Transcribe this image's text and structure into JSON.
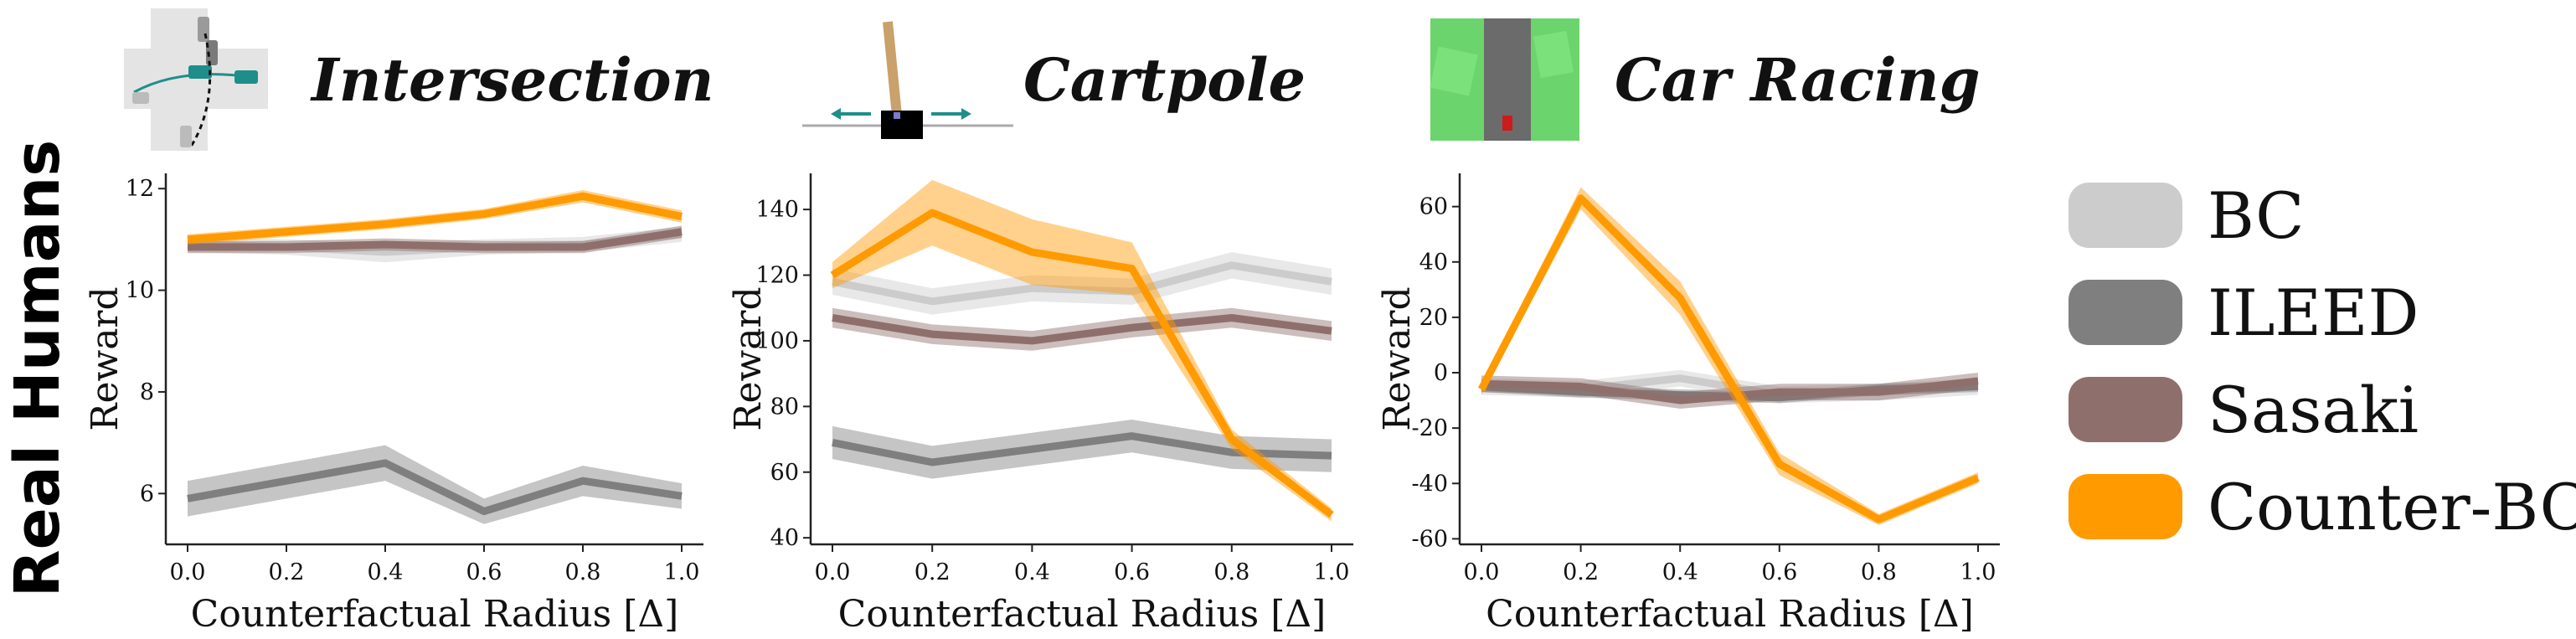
{
  "row_label": "Real Humans",
  "legend": [
    {
      "name": "BC",
      "color": "#cccccc"
    },
    {
      "name": "ILEED",
      "color": "#7f7f7f"
    },
    {
      "name": "Sasaki",
      "color": "#8f6f6c"
    },
    {
      "name": "Counter-BC",
      "color": "#ff9a00"
    }
  ],
  "chart_data": [
    {
      "type": "line",
      "title": "Intersection",
      "xlabel": "Counterfactual Radius [Δ]",
      "ylabel": "Reward",
      "x": [
        0.0,
        0.2,
        0.4,
        0.6,
        0.8,
        1.0
      ],
      "xticks": [
        "0.0",
        "0.2",
        "0.4",
        "0.6",
        "0.8",
        "1.0"
      ],
      "ylim": [
        5.0,
        12.3
      ],
      "yticks": [
        6,
        8,
        10,
        12
      ],
      "ytick_labels": [
        "6",
        "8",
        "10",
        "12"
      ],
      "series": [
        {
          "name": "BC",
          "values": [
            10.9,
            10.85,
            10.75,
            10.85,
            10.9,
            11.1
          ],
          "band": [
            0.15,
            0.15,
            0.2,
            0.15,
            0.15,
            0.15
          ]
        },
        {
          "name": "ILEED",
          "values": [
            5.9,
            6.25,
            6.6,
            5.65,
            6.25,
            5.95
          ],
          "band": [
            0.35,
            0.35,
            0.35,
            0.25,
            0.3,
            0.25
          ]
        },
        {
          "name": "Sasaki",
          "values": [
            10.85,
            10.85,
            10.9,
            10.85,
            10.85,
            11.15
          ],
          "band": [
            0.12,
            0.12,
            0.12,
            0.12,
            0.12,
            0.12
          ]
        },
        {
          "name": "Counter-BC",
          "values": [
            11.0,
            11.15,
            11.3,
            11.5,
            11.85,
            11.45
          ],
          "band": [
            0.1,
            0.1,
            0.1,
            0.1,
            0.12,
            0.12
          ]
        }
      ]
    },
    {
      "type": "line",
      "title": "Cartpole",
      "xlabel": "Counterfactual Radius [Δ]",
      "ylabel": "Reward",
      "x": [
        0.0,
        0.2,
        0.4,
        0.6,
        0.8,
        1.0
      ],
      "xticks": [
        "0.0",
        "0.2",
        "0.4",
        "0.6",
        "0.8",
        "1.0"
      ],
      "ylim": [
        38,
        151
      ],
      "yticks": [
        40,
        60,
        80,
        100,
        120,
        140
      ],
      "ytick_labels": [
        "40",
        "60",
        "80",
        "100",
        "120",
        "140"
      ],
      "series": [
        {
          "name": "BC",
          "values": [
            118,
            112,
            116,
            115,
            123,
            118
          ],
          "band": [
            4,
            4,
            4,
            4,
            4,
            4
          ]
        },
        {
          "name": "ILEED",
          "values": [
            69,
            63,
            67,
            71,
            66,
            65
          ],
          "band": [
            5,
            5,
            5,
            5,
            5,
            5
          ]
        },
        {
          "name": "Sasaki",
          "values": [
            107,
            102,
            100,
            104,
            107,
            103
          ],
          "band": [
            3,
            3,
            3,
            3,
            3,
            3
          ]
        },
        {
          "name": "Counter-BC",
          "values": [
            120,
            139,
            127,
            122,
            70,
            47
          ],
          "band": [
            4,
            10,
            10,
            8,
            3,
            2
          ]
        }
      ]
    },
    {
      "type": "line",
      "title": "Car Racing",
      "xlabel": "Counterfactual Radius [Δ]",
      "ylabel": "Reward",
      "x": [
        0.0,
        0.2,
        0.4,
        0.6,
        0.8,
        1.0
      ],
      "xticks": [
        "0.0",
        "0.2",
        "0.4",
        "0.6",
        "0.8",
        "1.0"
      ],
      "ylim": [
        -62,
        72
      ],
      "yticks": [
        -60,
        -40,
        -20,
        0,
        20,
        40,
        60
      ],
      "ytick_labels": [
        "-60",
        "-40",
        "-20",
        "0",
        "20",
        "40",
        "60"
      ],
      "series": [
        {
          "name": "BC",
          "values": [
            -5,
            -6,
            -2,
            -8,
            -7,
            -5
          ],
          "band": [
            3,
            3,
            3,
            3,
            3,
            3
          ]
        },
        {
          "name": "ILEED",
          "values": [
            -5,
            -7,
            -8,
            -9,
            -6,
            -5
          ],
          "band": [
            2,
            2,
            2,
            2,
            2,
            2
          ]
        },
        {
          "name": "Sasaki",
          "values": [
            -4,
            -5,
            -10,
            -7,
            -7,
            -3
          ],
          "band": [
            3,
            3,
            3,
            3,
            3,
            3
          ]
        },
        {
          "name": "Counter-BC",
          "values": [
            -6,
            63,
            27,
            -33,
            -53,
            -38
          ],
          "band": [
            2,
            4,
            6,
            4,
            2,
            2
          ]
        }
      ]
    }
  ]
}
